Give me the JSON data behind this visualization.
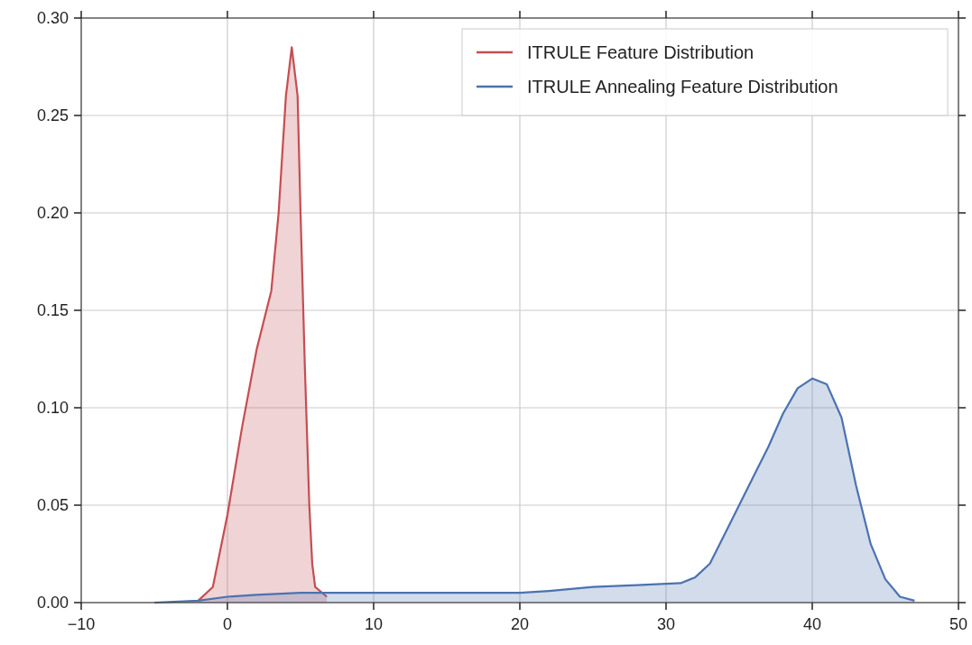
{
  "chart_data": {
    "type": "area",
    "xlim": [
      -10,
      50
    ],
    "ylim": [
      0,
      0.3
    ],
    "xticks": [
      {
        "value": -10,
        "label": "−10"
      },
      0,
      10,
      20,
      30,
      40,
      50
    ],
    "yticks": [
      {
        "value": 0,
        "label": "0.00"
      },
      {
        "value": 0.05,
        "label": "0.05"
      },
      {
        "value": 0.1,
        "label": "0.10"
      },
      {
        "value": 0.15,
        "label": "0.15"
      },
      {
        "value": 0.2,
        "label": "0.20"
      },
      {
        "value": 0.25,
        "label": "0.25"
      },
      {
        "value": 0.3,
        "label": "0.30"
      }
    ],
    "grid": true,
    "legend": "top right",
    "marker": "none",
    "line_style": "solid",
    "series": [
      {
        "name": "ITRULE Feature Distribution",
        "color": "#c44e52",
        "x": [
          -2,
          -1,
          0,
          1,
          2,
          3,
          3.5,
          4,
          4.4,
          4.8,
          5,
          5.3,
          5.6,
          5.8,
          6,
          6.8
        ],
        "values": [
          0.001,
          0.008,
          0.045,
          0.09,
          0.13,
          0.16,
          0.2,
          0.26,
          0.285,
          0.26,
          0.2,
          0.12,
          0.05,
          0.02,
          0.008,
          0.003
        ]
      },
      {
        "name": "ITRULE Annealing Feature Distribution",
        "color": "#4c72b0",
        "x": [
          -5,
          -2,
          0,
          2,
          5,
          10,
          20,
          22,
          25,
          28,
          31,
          32,
          33,
          34,
          35,
          36,
          37,
          38,
          39,
          40,
          41,
          42,
          43,
          44,
          45,
          46,
          47
        ],
        "values": [
          0,
          0.001,
          0.003,
          0.004,
          0.005,
          0.005,
          0.005,
          0.006,
          0.008,
          0.009,
          0.01,
          0.013,
          0.02,
          0.035,
          0.05,
          0.065,
          0.08,
          0.097,
          0.11,
          0.115,
          0.112,
          0.095,
          0.06,
          0.03,
          0.012,
          0.003,
          0.001
        ]
      }
    ]
  }
}
